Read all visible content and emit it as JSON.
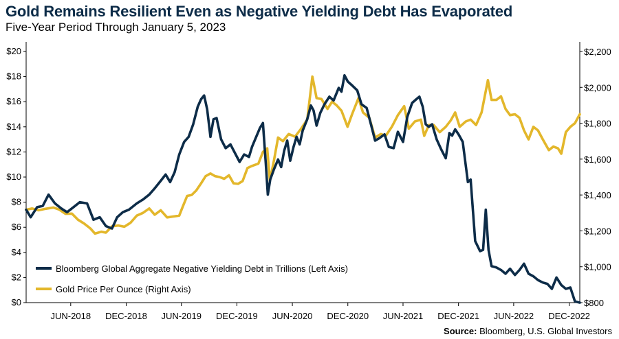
{
  "title": "Gold Remains Resilient Even as Negative Yielding Debt Has Evaporated",
  "subtitle": "Five-Year Period Through January 5, 2023",
  "source_label": "Source:",
  "source_text": "Bloomberg, U.S. Global Investors",
  "colors": {
    "debt": "#0d2c48",
    "gold": "#e3b72b",
    "axis": "#000000"
  },
  "chart_data": {
    "type": "line",
    "x_axis": {
      "range": [
        "2018-01-05",
        "2023-01-05"
      ],
      "tick_labels": [
        "JUN-2018",
        "DEC-2018",
        "JUN-2019",
        "DEC-2019",
        "JUN-2020",
        "DEC-2020",
        "JUN-2021",
        "DEC-2021",
        "JUN-2022",
        "DEC-2022"
      ],
      "tick_dates": [
        "2018-06-01",
        "2018-12-01",
        "2019-06-01",
        "2019-12-01",
        "2020-06-01",
        "2020-12-01",
        "2021-06-01",
        "2021-12-01",
        "2022-06-01",
        "2022-12-01"
      ]
    },
    "y_left": {
      "min": 0,
      "max": 20,
      "ticks": [
        0,
        2,
        4,
        6,
        8,
        10,
        12,
        14,
        16,
        18,
        20
      ],
      "tick_labels": [
        "$0",
        "$2",
        "$4",
        "$6",
        "$8",
        "$10",
        "$12",
        "$14",
        "$16",
        "$18",
        "$20"
      ]
    },
    "y_right": {
      "min": 800,
      "max": 2200,
      "ticks": [
        800,
        1000,
        1200,
        1400,
        1600,
        1800,
        2000,
        2200
      ],
      "tick_labels": [
        "$800",
        "$1,000",
        "$1,200",
        "$1,400",
        "$1,600",
        "$1,800",
        "$2,000",
        "$2,200"
      ]
    },
    "legend_position": "bottom-left",
    "grid": false,
    "series": [
      {
        "name": "Bloomberg Global Aggregate Negative Yielding Debt in Trillions (Left Axis)",
        "axis": "left",
        "points": [
          [
            "2018-01-05",
            7.4
          ],
          [
            "2018-01-20",
            6.8
          ],
          [
            "2018-02-10",
            7.6
          ],
          [
            "2018-03-01",
            7.7
          ],
          [
            "2018-03-20",
            8.6
          ],
          [
            "2018-04-10",
            7.9
          ],
          [
            "2018-05-01",
            7.5
          ],
          [
            "2018-05-20",
            7.2
          ],
          [
            "2018-06-10",
            7.6
          ],
          [
            "2018-07-01",
            8.0
          ],
          [
            "2018-07-25",
            7.9
          ],
          [
            "2018-08-15",
            6.6
          ],
          [
            "2018-09-05",
            6.8
          ],
          [
            "2018-09-25",
            6.1
          ],
          [
            "2018-10-15",
            5.9
          ],
          [
            "2018-11-01",
            6.8
          ],
          [
            "2018-11-20",
            7.2
          ],
          [
            "2018-12-10",
            7.4
          ],
          [
            "2019-01-05",
            7.9
          ],
          [
            "2019-01-25",
            8.2
          ],
          [
            "2019-02-15",
            8.6
          ],
          [
            "2019-03-05",
            9.1
          ],
          [
            "2019-03-25",
            9.7
          ],
          [
            "2019-04-10",
            10.2
          ],
          [
            "2019-04-25",
            9.6
          ],
          [
            "2019-05-10",
            10.4
          ],
          [
            "2019-05-25",
            11.8
          ],
          [
            "2019-06-10",
            12.8
          ],
          [
            "2019-06-25",
            13.2
          ],
          [
            "2019-07-10",
            14.2
          ],
          [
            "2019-07-25",
            15.6
          ],
          [
            "2019-08-05",
            16.2
          ],
          [
            "2019-08-15",
            16.5
          ],
          [
            "2019-08-25",
            15.4
          ],
          [
            "2019-09-05",
            13.2
          ],
          [
            "2019-09-15",
            14.6
          ],
          [
            "2019-09-25",
            14.7
          ],
          [
            "2019-10-10",
            13.0
          ],
          [
            "2019-10-25",
            12.3
          ],
          [
            "2019-11-10",
            12.6
          ],
          [
            "2019-11-25",
            11.9
          ],
          [
            "2019-12-10",
            11.2
          ],
          [
            "2019-12-25",
            11.8
          ],
          [
            "2020-01-10",
            11.6
          ],
          [
            "2020-01-20",
            12.4
          ],
          [
            "2020-02-01",
            13.1
          ],
          [
            "2020-02-15",
            13.9
          ],
          [
            "2020-02-25",
            14.3
          ],
          [
            "2020-03-05",
            11.2
          ],
          [
            "2020-03-12",
            8.6
          ],
          [
            "2020-03-20",
            9.8
          ],
          [
            "2020-04-01",
            10.6
          ],
          [
            "2020-04-15",
            11.4
          ],
          [
            "2020-04-25",
            10.8
          ],
          [
            "2020-05-05",
            12.1
          ],
          [
            "2020-05-15",
            12.9
          ],
          [
            "2020-05-25",
            11.3
          ],
          [
            "2020-06-05",
            12.4
          ],
          [
            "2020-06-15",
            13.2
          ],
          [
            "2020-06-25",
            12.6
          ],
          [
            "2020-07-05",
            13.7
          ],
          [
            "2020-07-20",
            14.6
          ],
          [
            "2020-08-01",
            15.7
          ],
          [
            "2020-08-10",
            15.3
          ],
          [
            "2020-08-20",
            14.1
          ],
          [
            "2020-09-01",
            15.1
          ],
          [
            "2020-09-15",
            15.8
          ],
          [
            "2020-10-01",
            16.4
          ],
          [
            "2020-10-15",
            16.1
          ],
          [
            "2020-11-01",
            17.1
          ],
          [
            "2020-11-10",
            16.8
          ],
          [
            "2020-11-20",
            18.1
          ],
          [
            "2020-12-01",
            17.6
          ],
          [
            "2020-12-15",
            17.3
          ],
          [
            "2021-01-01",
            16.9
          ],
          [
            "2021-01-15",
            15.8
          ],
          [
            "2021-02-01",
            15.5
          ],
          [
            "2021-02-15",
            14.2
          ],
          [
            "2021-03-01",
            12.9
          ],
          [
            "2021-03-15",
            13.1
          ],
          [
            "2021-04-01",
            13.4
          ],
          [
            "2021-04-15",
            12.4
          ],
          [
            "2021-05-01",
            12.3
          ],
          [
            "2021-05-15",
            13.6
          ],
          [
            "2021-06-01",
            12.8
          ],
          [
            "2021-06-15",
            14.8
          ],
          [
            "2021-07-01",
            15.9
          ],
          [
            "2021-07-15",
            16.2
          ],
          [
            "2021-07-25",
            16.4
          ],
          [
            "2021-08-05",
            15.6
          ],
          [
            "2021-08-15",
            14.2
          ],
          [
            "2021-08-25",
            14.0
          ],
          [
            "2021-09-05",
            14.2
          ],
          [
            "2021-09-20",
            13.0
          ],
          [
            "2021-10-05",
            12.2
          ],
          [
            "2021-10-20",
            11.5
          ],
          [
            "2021-11-01",
            13.5
          ],
          [
            "2021-11-10",
            13.3
          ],
          [
            "2021-11-20",
            13.8
          ],
          [
            "2021-12-01",
            13.4
          ],
          [
            "2021-12-15",
            12.8
          ],
          [
            "2022-01-01",
            9.6
          ],
          [
            "2022-01-10",
            9.8
          ],
          [
            "2022-01-25",
            4.9
          ],
          [
            "2022-02-10",
            4.1
          ],
          [
            "2022-02-20",
            4.2
          ],
          [
            "2022-03-01",
            7.4
          ],
          [
            "2022-03-10",
            4.2
          ],
          [
            "2022-03-20",
            2.9
          ],
          [
            "2022-04-05",
            2.8
          ],
          [
            "2022-04-20",
            2.6
          ],
          [
            "2022-05-05",
            2.3
          ],
          [
            "2022-05-20",
            2.7
          ],
          [
            "2022-06-05",
            2.2
          ],
          [
            "2022-06-20",
            2.6
          ],
          [
            "2022-07-05",
            3.1
          ],
          [
            "2022-07-20",
            2.3
          ],
          [
            "2022-08-05",
            2.1
          ],
          [
            "2022-08-20",
            1.8
          ],
          [
            "2022-09-05",
            1.6
          ],
          [
            "2022-09-20",
            1.5
          ],
          [
            "2022-10-05",
            1.1
          ],
          [
            "2022-10-20",
            2.0
          ],
          [
            "2022-11-05",
            1.4
          ],
          [
            "2022-11-20",
            1.1
          ],
          [
            "2022-12-05",
            1.2
          ],
          [
            "2022-12-20",
            0.1
          ],
          [
            "2023-01-05",
            0.0
          ]
        ]
      },
      {
        "name": "Gold Price Per Ounce (Right Axis)",
        "axis": "right",
        "points": [
          [
            "2018-01-05",
            1318
          ],
          [
            "2018-01-25",
            1325
          ],
          [
            "2018-02-15",
            1315
          ],
          [
            "2018-03-10",
            1323
          ],
          [
            "2018-04-05",
            1330
          ],
          [
            "2018-04-25",
            1318
          ],
          [
            "2018-05-15",
            1295
          ],
          [
            "2018-06-05",
            1296
          ],
          [
            "2018-06-25",
            1262
          ],
          [
            "2018-07-15",
            1241
          ],
          [
            "2018-08-05",
            1213
          ],
          [
            "2018-08-20",
            1185
          ],
          [
            "2018-09-10",
            1195
          ],
          [
            "2018-09-25",
            1190
          ],
          [
            "2018-10-15",
            1225
          ],
          [
            "2018-11-05",
            1230
          ],
          [
            "2018-11-25",
            1223
          ],
          [
            "2018-12-15",
            1245
          ],
          [
            "2019-01-05",
            1285
          ],
          [
            "2019-01-25",
            1300
          ],
          [
            "2019-02-15",
            1325
          ],
          [
            "2019-03-05",
            1290
          ],
          [
            "2019-03-25",
            1315
          ],
          [
            "2019-04-15",
            1275
          ],
          [
            "2019-05-05",
            1280
          ],
          [
            "2019-05-25",
            1285
          ],
          [
            "2019-06-05",
            1333
          ],
          [
            "2019-06-20",
            1395
          ],
          [
            "2019-07-05",
            1400
          ],
          [
            "2019-07-20",
            1425
          ],
          [
            "2019-08-05",
            1465
          ],
          [
            "2019-08-20",
            1505
          ],
          [
            "2019-09-05",
            1520
          ],
          [
            "2019-09-20",
            1505
          ],
          [
            "2019-10-05",
            1500
          ],
          [
            "2019-10-20",
            1490
          ],
          [
            "2019-11-05",
            1510
          ],
          [
            "2019-11-20",
            1465
          ],
          [
            "2019-12-05",
            1462
          ],
          [
            "2019-12-20",
            1478
          ],
          [
            "2020-01-05",
            1550
          ],
          [
            "2020-01-20",
            1562
          ],
          [
            "2020-02-10",
            1575
          ],
          [
            "2020-02-25",
            1640
          ],
          [
            "2020-03-10",
            1660
          ],
          [
            "2020-03-19",
            1480
          ],
          [
            "2020-04-01",
            1590
          ],
          [
            "2020-04-15",
            1720
          ],
          [
            "2020-05-01",
            1700
          ],
          [
            "2020-05-20",
            1740
          ],
          [
            "2020-06-10",
            1725
          ],
          [
            "2020-06-30",
            1770
          ],
          [
            "2020-07-20",
            1820
          ],
          [
            "2020-08-06",
            2060
          ],
          [
            "2020-08-20",
            1940
          ],
          [
            "2020-09-05",
            1935
          ],
          [
            "2020-09-25",
            1880
          ],
          [
            "2020-10-10",
            1920
          ],
          [
            "2020-10-25",
            1900
          ],
          [
            "2020-11-10",
            1870
          ],
          [
            "2020-11-30",
            1780
          ],
          [
            "2020-12-15",
            1850
          ],
          [
            "2021-01-05",
            1940
          ],
          [
            "2021-01-20",
            1860
          ],
          [
            "2021-02-10",
            1830
          ],
          [
            "2021-03-01",
            1720
          ],
          [
            "2021-03-20",
            1740
          ],
          [
            "2021-04-05",
            1730
          ],
          [
            "2021-04-25",
            1780
          ],
          [
            "2021-05-15",
            1845
          ],
          [
            "2021-06-05",
            1895
          ],
          [
            "2021-06-20",
            1770
          ],
          [
            "2021-07-10",
            1810
          ],
          [
            "2021-07-30",
            1820
          ],
          [
            "2021-08-10",
            1730
          ],
          [
            "2021-08-25",
            1790
          ],
          [
            "2021-09-10",
            1790
          ],
          [
            "2021-09-30",
            1750
          ],
          [
            "2021-10-20",
            1780
          ],
          [
            "2021-11-05",
            1815
          ],
          [
            "2021-11-20",
            1860
          ],
          [
            "2021-12-05",
            1780
          ],
          [
            "2021-12-25",
            1810
          ],
          [
            "2022-01-10",
            1820
          ],
          [
            "2022-01-28",
            1790
          ],
          [
            "2022-02-15",
            1860
          ],
          [
            "2022-03-08",
            2040
          ],
          [
            "2022-03-20",
            1930
          ],
          [
            "2022-04-05",
            1930
          ],
          [
            "2022-04-20",
            1950
          ],
          [
            "2022-05-05",
            1880
          ],
          [
            "2022-05-20",
            1845
          ],
          [
            "2022-06-05",
            1850
          ],
          [
            "2022-06-20",
            1830
          ],
          [
            "2022-07-05",
            1760
          ],
          [
            "2022-07-20",
            1710
          ],
          [
            "2022-08-05",
            1780
          ],
          [
            "2022-08-20",
            1760
          ],
          [
            "2022-09-05",
            1710
          ],
          [
            "2022-09-25",
            1650
          ],
          [
            "2022-10-10",
            1670
          ],
          [
            "2022-10-25",
            1660
          ],
          [
            "2022-11-05",
            1630
          ],
          [
            "2022-11-20",
            1750
          ],
          [
            "2022-12-05",
            1780
          ],
          [
            "2022-12-20",
            1800
          ],
          [
            "2023-01-05",
            1850
          ]
        ]
      }
    ]
  }
}
